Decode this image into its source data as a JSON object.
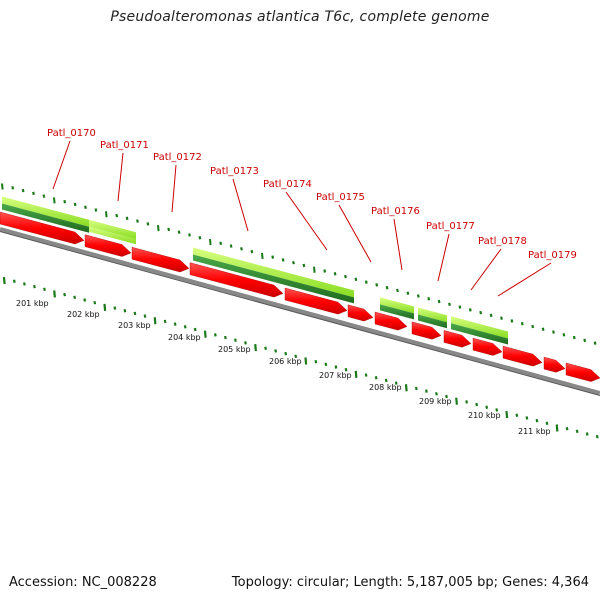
{
  "title": "Pseudoalteromonas atlantica T6c, complete genome",
  "footer": {
    "accession": "Accession: NC_008228",
    "summary": "Topology: circular; Length: 5,187,005 bp; Genes: 4,364"
  },
  "colors": {
    "label": "#cc0000",
    "cds": "#ff0000",
    "gene": "#2e8b2e",
    "ruler": "#1a7a1a",
    "light_green": "#aaff33",
    "backbone": "#888888"
  },
  "kbp_labels": [
    "201 kbp",
    "202 kbp",
    "203 kbp",
    "204 kbp",
    "205 kbp",
    "206 kbp",
    "207 kbp",
    "208 kbp",
    "209 kbp",
    "210 kbp",
    "211 kbp"
  ],
  "gene_labels": [
    "Patl_0170",
    "Patl_0171",
    "Patl_0172",
    "Patl_0173",
    "Patl_0174",
    "Patl_0175",
    "Patl_0176",
    "Patl_0177",
    "Patl_0178",
    "Patl_0179"
  ]
}
